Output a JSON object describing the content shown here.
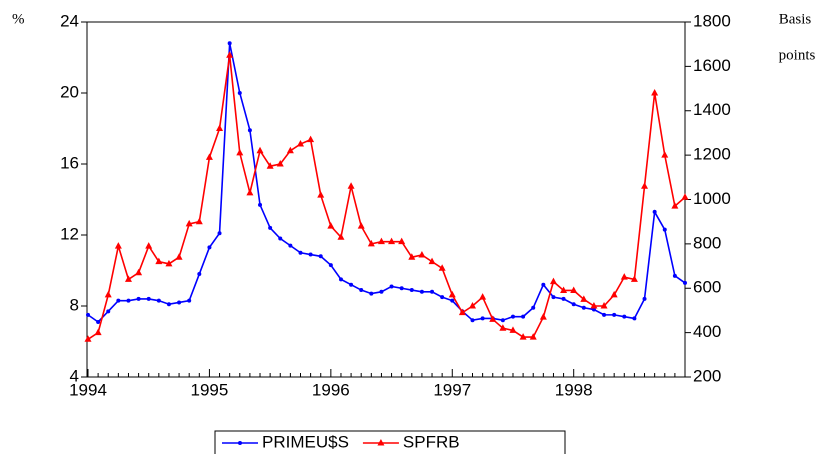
{
  "chart_data": {
    "type": "line",
    "y_label": "%",
    "y2_label": [
      "Basis",
      "points"
    ],
    "categories": [
      "1994",
      null,
      null,
      null,
      null,
      null,
      null,
      null,
      null,
      null,
      null,
      null,
      "1995",
      null,
      null,
      null,
      null,
      null,
      null,
      null,
      null,
      null,
      null,
      null,
      "1996",
      null,
      null,
      null,
      null,
      null,
      null,
      null,
      null,
      null,
      null,
      null,
      "1997",
      null,
      null,
      null,
      null,
      null,
      null,
      null,
      null,
      null,
      null,
      null,
      "1998",
      null,
      null,
      null,
      null,
      null,
      null,
      null,
      null,
      null,
      null,
      null
    ],
    "ylim": [
      4,
      24
    ],
    "yticks": [
      4,
      8,
      12,
      16,
      20,
      24
    ],
    "y2lim": [
      200,
      1800
    ],
    "y2ticks": [
      200,
      400,
      600,
      800,
      1000,
      1200,
      1400,
      1600,
      1800
    ],
    "legend": "bottom",
    "series": [
      {
        "name": "PRIMEU$S",
        "color": "#0000ff",
        "marker": "circle",
        "values": [
          7.5,
          7.1,
          7.7,
          8.3,
          8.3,
          8.4,
          8.4,
          8.3,
          8.1,
          8.2,
          8.3,
          9.8,
          11.3,
          12.1,
          22.8,
          20.0,
          17.9,
          13.7,
          12.4,
          11.8,
          11.4,
          11.0,
          10.9,
          10.8,
          10.3,
          9.5,
          9.2,
          8.9,
          8.7,
          8.8,
          9.1,
          9.0,
          8.9,
          8.8,
          8.8,
          8.5,
          8.3,
          7.7,
          7.2,
          7.3,
          7.3,
          7.2,
          7.4,
          7.4,
          7.9,
          9.2,
          8.5,
          8.4,
          8.1,
          7.9,
          7.8,
          7.5,
          7.5,
          7.4,
          7.3,
          8.4,
          13.3,
          12.3,
          9.7,
          9.3
        ]
      },
      {
        "name": "SPFRB",
        "color": "#ff0000",
        "marker": "triangle",
        "axis": "y2",
        "values": [
          370,
          400,
          570,
          790,
          640,
          670,
          790,
          720,
          710,
          740,
          890,
          900,
          1190,
          1320,
          1650,
          1210,
          1030,
          1220,
          1150,
          1160,
          1220,
          1250,
          1270,
          1020,
          880,
          830,
          1060,
          880,
          800,
          810,
          810,
          810,
          740,
          750,
          720,
          690,
          570,
          490,
          520,
          560,
          460,
          420,
          410,
          380,
          380,
          470,
          630,
          590,
          590,
          550,
          520,
          520,
          570,
          650,
          640,
          1060,
          1480,
          1200,
          970,
          1010
        ]
      }
    ]
  }
}
